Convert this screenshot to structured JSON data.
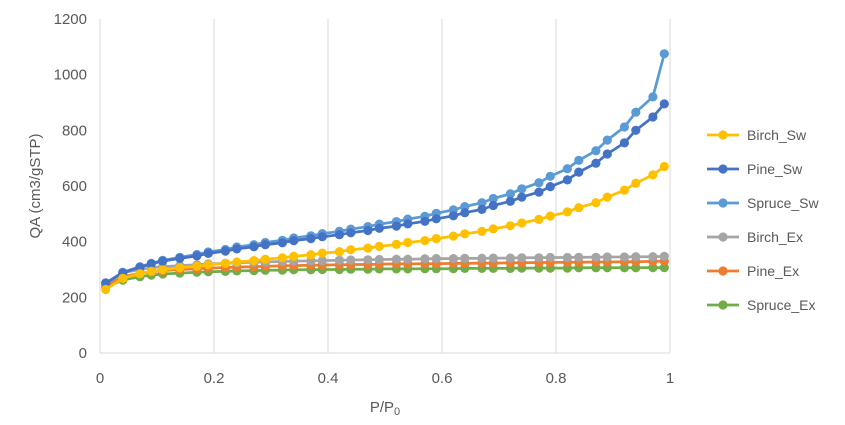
{
  "chart_data": {
    "type": "line",
    "xlabel": "P/P0",
    "ylabel": "QA (cm3/gSTP)",
    "xlim": [
      0,
      1
    ],
    "ylim": [
      0,
      1200
    ],
    "x_ticks": [
      "0",
      "0.2",
      "0.4",
      "0.6",
      "0.8",
      "1"
    ],
    "y_ticks": [
      "0",
      "200",
      "400",
      "600",
      "800",
      "1000",
      "1200"
    ],
    "grid": "vertical",
    "legend": "right",
    "x": [
      0.01,
      0.04,
      0.07,
      0.09,
      0.11,
      0.14,
      0.17,
      0.19,
      0.22,
      0.24,
      0.27,
      0.29,
      0.32,
      0.34,
      0.37,
      0.39,
      0.42,
      0.44,
      0.47,
      0.49,
      0.52,
      0.54,
      0.57,
      0.59,
      0.62,
      0.64,
      0.67,
      0.69,
      0.72,
      0.74,
      0.77,
      0.79,
      0.82,
      0.84,
      0.87,
      0.89,
      0.92,
      0.94,
      0.97,
      0.99
    ],
    "series": [
      {
        "name": "Birch_Sw",
        "color": "#FFC000",
        "values": [
          228,
          268,
          285,
          293,
          299,
          306,
          312,
          317,
          322,
          327,
          332,
          337,
          342,
          347,
          353,
          359,
          364,
          371,
          377,
          383,
          390,
          397,
          404,
          411,
          420,
          428,
          437,
          446,
          457,
          467,
          480,
          492,
          507,
          522,
          540,
          560,
          585,
          610,
          640,
          670
        ]
      },
      {
        "name": "Pine_Sw",
        "color": "#4472C4",
        "values": [
          250,
          288,
          308,
          320,
          330,
          340,
          349,
          358,
          366,
          374,
          382,
          389,
          396,
          404,
          411,
          418,
          425,
          432,
          440,
          448,
          456,
          464,
          473,
          482,
          493,
          504,
          516,
          530,
          545,
          560,
          578,
          598,
          622,
          650,
          682,
          715,
          755,
          800,
          848,
          895
        ]
      },
      {
        "name": "Spruce_Sw",
        "color": "#5B9BD5",
        "values": [
          252,
          290,
          310,
          322,
          333,
          344,
          354,
          363,
          372,
          381,
          389,
          397,
          405,
          413,
          421,
          429,
          437,
          445,
          454,
          463,
          472,
          481,
          491,
          502,
          514,
          526,
          540,
          555,
          572,
          590,
          612,
          635,
          662,
          692,
          727,
          765,
          812,
          865,
          920,
          1075
        ]
      },
      {
        "name": "Birch_Ex",
        "color": "#A5A5A5",
        "values": [
          252,
          288,
          300,
          306,
          310,
          314,
          317,
          320,
          322,
          324,
          326,
          327,
          329,
          330,
          331,
          332,
          333,
          334,
          335,
          336,
          337,
          337,
          338,
          339,
          339,
          340,
          340,
          341,
          341,
          342,
          342,
          343,
          343,
          344,
          344,
          345,
          345,
          346,
          346,
          347
        ]
      },
      {
        "name": "Pine_Ex",
        "color": "#ED7D31",
        "values": [
          240,
          274,
          286,
          292,
          296,
          300,
          303,
          305,
          307,
          309,
          310,
          312,
          313,
          314,
          315,
          316,
          317,
          318,
          318,
          319,
          320,
          320,
          321,
          321,
          322,
          322,
          323,
          323,
          324,
          324,
          325,
          325,
          326,
          326,
          327,
          327,
          328,
          328,
          329,
          330
        ]
      },
      {
        "name": "Spruce_Ex",
        "color": "#70AD47",
        "values": [
          236,
          262,
          274,
          280,
          284,
          287,
          290,
          292,
          293,
          295,
          296,
          297,
          298,
          299,
          299,
          300,
          300,
          301,
          301,
          302,
          302,
          302,
          303,
          303,
          303,
          304,
          304,
          304,
          304,
          305,
          305,
          305,
          305,
          306,
          306,
          306,
          306,
          306,
          307,
          307
        ]
      }
    ]
  }
}
